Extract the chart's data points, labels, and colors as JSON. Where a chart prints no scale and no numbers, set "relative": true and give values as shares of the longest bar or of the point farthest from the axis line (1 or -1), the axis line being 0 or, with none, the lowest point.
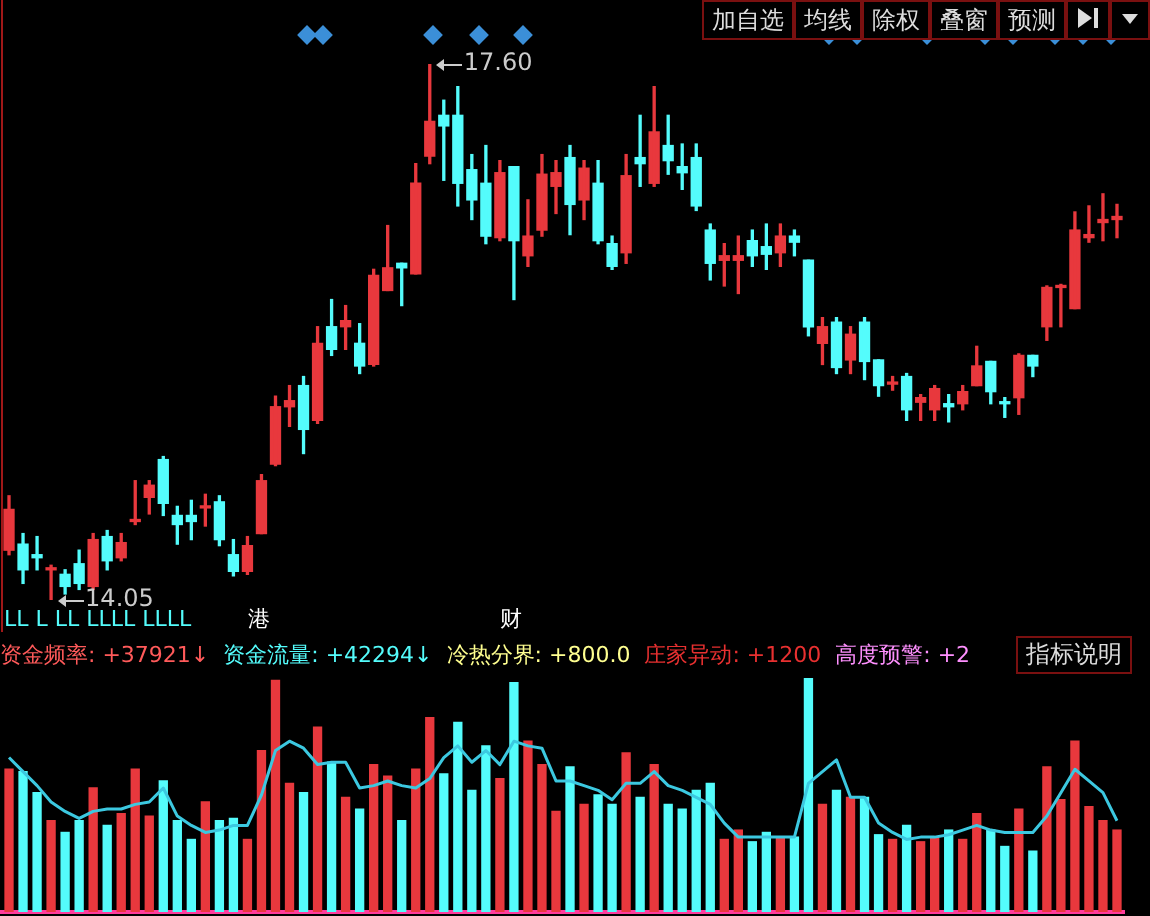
{
  "chart_data": [
    {
      "type": "candlestick",
      "categories": [
        null,
        null,
        null,
        null,
        null,
        null,
        null,
        null,
        null,
        null,
        null,
        null,
        null,
        null,
        null,
        null,
        null,
        null,
        null,
        null,
        null,
        null,
        null,
        null,
        null,
        null,
        null,
        null,
        null,
        null,
        null,
        null,
        null,
        null,
        null,
        null,
        null,
        null,
        null,
        null,
        null,
        null,
        null,
        null,
        null,
        null,
        null,
        null,
        null,
        null,
        null,
        null,
        null,
        null,
        null,
        null,
        null,
        null,
        null,
        null,
        null,
        null,
        null,
        null,
        null,
        null,
        null,
        null,
        null,
        null,
        null,
        null,
        null,
        null,
        null,
        null,
        null,
        null,
        null,
        null
      ],
      "ohlc": [
        [
          14.38,
          14.74,
          14.35,
          14.65
        ],
        [
          14.42,
          14.49,
          14.16,
          14.25
        ],
        [
          14.35,
          14.47,
          14.25,
          14.33
        ],
        [
          14.25,
          14.28,
          14.05,
          14.26
        ],
        [
          14.22,
          14.25,
          14.09,
          14.14
        ],
        [
          14.29,
          14.38,
          14.12,
          14.16
        ],
        [
          14.14,
          14.49,
          14.12,
          14.45
        ],
        [
          14.47,
          14.51,
          14.25,
          14.31
        ],
        [
          14.33,
          14.49,
          14.31,
          14.43
        ],
        [
          14.57,
          14.84,
          14.55,
          14.58
        ],
        [
          14.73,
          14.84,
          14.62,
          14.81
        ],
        [
          14.98,
          15.0,
          14.61,
          14.69
        ],
        [
          14.61,
          14.67,
          14.42,
          14.55
        ],
        [
          14.61,
          14.71,
          14.45,
          14.57
        ],
        [
          14.66,
          14.75,
          14.54,
          14.67
        ],
        [
          14.7,
          14.74,
          14.41,
          14.45
        ],
        [
          14.35,
          14.45,
          14.21,
          14.24
        ],
        [
          14.24,
          14.47,
          14.22,
          14.41
        ],
        [
          14.49,
          14.88,
          14.49,
          14.84
        ],
        [
          14.95,
          15.4,
          14.94,
          15.33
        ],
        [
          15.33,
          15.47,
          15.2,
          15.37
        ],
        [
          15.47,
          15.53,
          15.02,
          15.18
        ],
        [
          15.24,
          15.86,
          15.22,
          15.75
        ],
        [
          15.86,
          16.04,
          15.67,
          15.71
        ],
        [
          15.86,
          16.0,
          15.71,
          15.9
        ],
        [
          15.75,
          15.88,
          15.55,
          15.6
        ],
        [
          15.61,
          16.24,
          15.6,
          16.2
        ],
        [
          16.1,
          16.53,
          16.1,
          16.25
        ],
        [
          16.28,
          16.28,
          16.0,
          16.25
        ],
        [
          16.21,
          16.94,
          16.21,
          16.81
        ],
        [
          16.99,
          17.6,
          16.94,
          17.22
        ],
        [
          17.26,
          17.36,
          16.83,
          17.19
        ],
        [
          17.26,
          17.45,
          16.66,
          16.81
        ],
        [
          16.9,
          17.0,
          16.57,
          16.7
        ],
        [
          16.81,
          17.06,
          16.41,
          16.46
        ],
        [
          16.45,
          16.96,
          16.43,
          16.88
        ],
        [
          16.92,
          16.92,
          16.04,
          16.43
        ],
        [
          16.33,
          16.7,
          16.26,
          16.46
        ],
        [
          16.5,
          17.0,
          16.46,
          16.87
        ],
        [
          16.79,
          16.96,
          16.61,
          16.88
        ],
        [
          16.98,
          17.06,
          16.47,
          16.67
        ],
        [
          16.7,
          16.96,
          16.57,
          16.91
        ],
        [
          16.81,
          16.96,
          16.41,
          16.43
        ],
        [
          16.41,
          16.46,
          16.24,
          16.26
        ],
        [
          16.35,
          17.0,
          16.28,
          16.86
        ],
        [
          16.98,
          17.26,
          16.79,
          16.94
        ],
        [
          16.81,
          17.45,
          16.79,
          17.15
        ],
        [
          17.06,
          17.26,
          16.87,
          16.96
        ],
        [
          16.92,
          17.07,
          16.77,
          16.88
        ],
        [
          16.98,
          17.07,
          16.63,
          16.66
        ],
        [
          16.5,
          16.54,
          16.17,
          16.28
        ],
        [
          16.3,
          16.41,
          16.13,
          16.33
        ],
        [
          16.3,
          16.46,
          16.08,
          16.33
        ],
        [
          16.43,
          16.5,
          16.26,
          16.33
        ],
        [
          16.39,
          16.54,
          16.24,
          16.34
        ],
        [
          16.35,
          16.54,
          16.26,
          16.46
        ],
        [
          16.46,
          16.5,
          16.33,
          16.42
        ],
        [
          16.3,
          16.3,
          15.8,
          15.86
        ],
        [
          15.75,
          15.92,
          15.61,
          15.86
        ],
        [
          15.89,
          15.92,
          15.55,
          15.59
        ],
        [
          15.64,
          15.86,
          15.55,
          15.81
        ],
        [
          15.89,
          15.92,
          15.51,
          15.63
        ],
        [
          15.64,
          15.64,
          15.4,
          15.47
        ],
        [
          15.49,
          15.53,
          15.44,
          15.48
        ],
        [
          15.53,
          15.55,
          15.24,
          15.31
        ],
        [
          15.36,
          15.41,
          15.24,
          15.39
        ],
        [
          15.31,
          15.47,
          15.24,
          15.45
        ],
        [
          15.35,
          15.41,
          15.23,
          15.33
        ],
        [
          15.35,
          15.47,
          15.31,
          15.43
        ],
        [
          15.47,
          15.73,
          15.47,
          15.6
        ],
        [
          15.63,
          15.63,
          15.35,
          15.43
        ],
        [
          15.36,
          15.39,
          15.26,
          15.35
        ],
        [
          15.39,
          15.68,
          15.28,
          15.67
        ],
        [
          15.67,
          15.67,
          15.53,
          15.6
        ],
        [
          15.86,
          16.13,
          15.77,
          16.12
        ],
        [
          16.12,
          16.14,
          15.86,
          16.13
        ],
        [
          15.98,
          16.62,
          15.98,
          16.5
        ],
        [
          16.45,
          16.66,
          16.42,
          16.47
        ],
        [
          16.55,
          16.74,
          16.43,
          16.57
        ],
        [
          16.57,
          16.67,
          16.45,
          16.59
        ]
      ],
      "colors": [
        "#e8383d",
        "#54fcfc",
        "#54fcfc",
        "#e8383d",
        "#54fcfc",
        "#54fcfc",
        "#e8383d",
        "#54fcfc",
        "#e8383d",
        "#e8383d",
        "#e8383d",
        "#54fcfc",
        "#54fcfc",
        "#54fcfc",
        "#e8383d",
        "#54fcfc",
        "#54fcfc",
        "#e8383d",
        "#e8383d",
        "#e8383d",
        "#e8383d",
        "#54fcfc",
        "#e8383d",
        "#54fcfc",
        "#e8383d",
        "#54fcfc",
        "#e8383d",
        "#e8383d",
        "#54fcfc",
        "#e8383d",
        "#e8383d",
        "#54fcfc",
        "#54fcfc",
        "#54fcfc",
        "#54fcfc",
        "#e8383d",
        "#54fcfc",
        "#e8383d",
        "#e8383d",
        "#e8383d",
        "#54fcfc",
        "#e8383d",
        "#54fcfc",
        "#54fcfc",
        "#e8383d",
        "#54fcfc",
        "#e8383d",
        "#54fcfc",
        "#54fcfc",
        "#54fcfc",
        "#54fcfc",
        "#e8383d",
        "#e8383d",
        "#54fcfc",
        "#54fcfc",
        "#e8383d",
        "#54fcfc",
        "#54fcfc",
        "#e8383d",
        "#54fcfc",
        "#e8383d",
        "#54fcfc",
        "#54fcfc",
        "#e8383d",
        "#54fcfc",
        "#e8383d",
        "#e8383d",
        "#54fcfc",
        "#e8383d",
        "#e8383d",
        "#54fcfc",
        "#54fcfc",
        "#e8383d",
        "#54fcfc",
        "#e8383d",
        "#e8383d",
        "#e8383d",
        "#e8383d",
        "#e8383d",
        "#e8383d"
      ],
      "annotations": [
        "17.60",
        "14.05",
        "LL L LL LLLL LLLL",
        "港",
        "财",
        "加自选",
        "均线",
        "除权",
        "叠窗",
        "预测"
      ],
      "legend": false
    },
    {
      "type": "bar",
      "relative": true,
      "categories": [
        null,
        null,
        null,
        null,
        null,
        null,
        null,
        null,
        null,
        null,
        null,
        null,
        null,
        null,
        null,
        null,
        null,
        null,
        null,
        null,
        null,
        null,
        null,
        null,
        null,
        null,
        null,
        null,
        null,
        null,
        null,
        null,
        null,
        null,
        null,
        null,
        null,
        null,
        null,
        null,
        null,
        null,
        null,
        null,
        null,
        null,
        null,
        null,
        null,
        null,
        null,
        null,
        null,
        null,
        null,
        null,
        null,
        null,
        null,
        null,
        null,
        null,
        null,
        null,
        null,
        null,
        null,
        null,
        null,
        null,
        null,
        null,
        null,
        null,
        null,
        null,
        null,
        null,
        null,
        null
      ],
      "series": [
        {
          "type": "bar",
          "colors": [
            "#e8383d",
            "#54fcfc",
            "#54fcfc",
            "#e8383d",
            "#54fcfc",
            "#54fcfc",
            "#e8383d",
            "#54fcfc",
            "#e8383d",
            "#e8383d",
            "#e8383d",
            "#54fcfc",
            "#54fcfc",
            "#54fcfc",
            "#e8383d",
            "#54fcfc",
            "#54fcfc",
            "#e8383d",
            "#e8383d",
            "#e8383d",
            "#e8383d",
            "#54fcfc",
            "#e8383d",
            "#54fcfc",
            "#e8383d",
            "#54fcfc",
            "#e8383d",
            "#e8383d",
            "#54fcfc",
            "#e8383d",
            "#e8383d",
            "#54fcfc",
            "#54fcfc",
            "#54fcfc",
            "#54fcfc",
            "#e8383d",
            "#54fcfc",
            "#e8383d",
            "#e8383d",
            "#e8383d",
            "#54fcfc",
            "#e8383d",
            "#54fcfc",
            "#54fcfc",
            "#e8383d",
            "#54fcfc",
            "#e8383d",
            "#54fcfc",
            "#54fcfc",
            "#54fcfc",
            "#54fcfc",
            "#e8383d",
            "#e8383d",
            "#54fcfc",
            "#54fcfc",
            "#e8383d",
            "#54fcfc",
            "#54fcfc",
            "#e8383d",
            "#54fcfc",
            "#e8383d",
            "#54fcfc",
            "#54fcfc",
            "#e8383d",
            "#54fcfc",
            "#e8383d",
            "#e8383d",
            "#54fcfc",
            "#e8383d",
            "#e8383d",
            "#54fcfc",
            "#54fcfc",
            "#e8383d",
            "#54fcfc",
            "#e8383d",
            "#e8383d",
            "#e8383d",
            "#e8383d",
            "#e8383d",
            "#e8383d"
          ],
          "values": [
            0.61,
            0.6,
            0.51,
            0.39,
            0.34,
            0.39,
            0.53,
            0.37,
            0.42,
            0.61,
            0.41,
            0.56,
            0.39,
            0.31,
            0.47,
            0.39,
            0.4,
            0.31,
            0.69,
            0.99,
            0.55,
            0.51,
            0.79,
            0.64,
            0.49,
            0.44,
            0.63,
            0.58,
            0.39,
            0.61,
            0.83,
            0.59,
            0.81,
            0.52,
            0.71,
            0.57,
            0.98,
            0.73,
            0.63,
            0.43,
            0.62,
            0.46,
            0.5,
            0.46,
            0.68,
            0.49,
            0.63,
            0.46,
            0.44,
            0.52,
            0.55,
            0.31,
            0.35,
            0.3,
            0.34,
            0.32,
            0.32,
            1.0,
            0.46,
            0.52,
            0.49,
            0.49,
            0.33,
            0.31,
            0.37,
            0.3,
            0.32,
            0.35,
            0.31,
            0.42,
            0.35,
            0.28,
            0.44,
            0.26,
            0.62,
            0.48,
            0.73,
            0.45,
            0.39,
            0.35
          ]
        },
        {
          "type": "line",
          "color": "#3cc8e0",
          "values": [
            0.66,
            0.6,
            0.54,
            0.47,
            0.43,
            0.4,
            0.43,
            0.44,
            0.44,
            0.46,
            0.47,
            0.53,
            0.41,
            0.37,
            0.34,
            0.35,
            0.37,
            0.37,
            0.5,
            0.69,
            0.73,
            0.7,
            0.63,
            0.64,
            0.64,
            0.53,
            0.54,
            0.56,
            0.54,
            0.53,
            0.57,
            0.66,
            0.71,
            0.64,
            0.69,
            0.63,
            0.73,
            0.71,
            0.7,
            0.56,
            0.56,
            0.54,
            0.52,
            0.48,
            0.55,
            0.55,
            0.6,
            0.54,
            0.52,
            0.49,
            0.46,
            0.38,
            0.32,
            0.32,
            0.32,
            0.32,
            0.32,
            0.55,
            0.6,
            0.65,
            0.49,
            0.49,
            0.38,
            0.34,
            0.31,
            0.32,
            0.32,
            0.33,
            0.35,
            0.37,
            0.35,
            0.34,
            0.34,
            0.34,
            0.41,
            0.51,
            0.61,
            0.56,
            0.51,
            0.39
          ]
        }
      ],
      "annotations": [
        "资金频率: +37921↓",
        "资金流量: +42294↓",
        "冷热分界: +800.0",
        "庄家异动: +1200",
        "高度预警: +2",
        "指标说明"
      ],
      "legend": false
    }
  ]
}
